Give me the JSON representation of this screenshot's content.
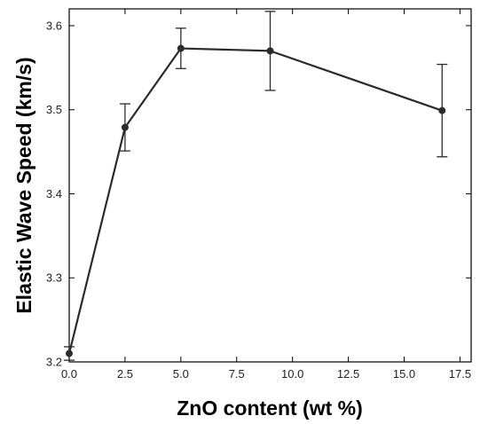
{
  "chart_data": {
    "type": "line",
    "xlabel": "ZnO content (wt %)",
    "ylabel": "Elastic Wave Speed (km/s)",
    "xlim": [
      0,
      18.0
    ],
    "ylim": [
      3.2,
      3.62
    ],
    "x_ticks": [
      "0.0",
      "2.5",
      "5.0",
      "7.5",
      "10.0",
      "12.5",
      "15.0",
      "17.5"
    ],
    "y_ticks": [
      "3.2",
      "3.3",
      "3.4",
      "3.5",
      "3.6"
    ],
    "grid": false,
    "series": [
      {
        "x": [
          0.0,
          2.5,
          5.0,
          9.0,
          16.7
        ],
        "y": [
          3.21,
          3.479,
          3.573,
          3.57,
          3.499
        ],
        "error": [
          0.008,
          0.028,
          0.024,
          0.047,
          0.055
        ]
      }
    ]
  }
}
